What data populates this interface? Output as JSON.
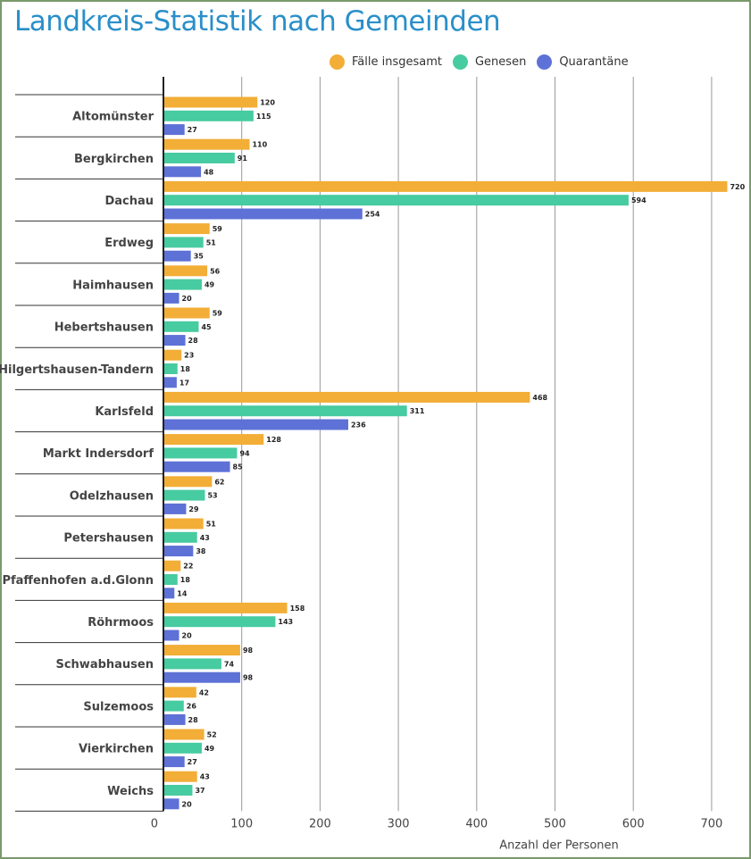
{
  "chart_data": {
    "type": "bar",
    "orientation": "horizontal",
    "title": "Landkreis-Statistik nach Gemeinden",
    "xlabel": "Anzahl der Personen",
    "ylabel": "",
    "xlim": [
      0,
      730
    ],
    "xticks": [
      0,
      100,
      200,
      300,
      400,
      500,
      600,
      700
    ],
    "grid": true,
    "legend_position": "top-right",
    "categories": [
      "Altomünster",
      "Bergkirchen",
      "Dachau",
      "Erdweg",
      "Haimhausen",
      "Hebertshausen",
      "Hilgertshausen-Tandern",
      "Karlsfeld",
      "Markt Indersdorf",
      "Odelzhausen",
      "Petershausen",
      "Pfaffenhofen a.d.Glonn",
      "Röhrmoos",
      "Schwabhausen",
      "Sulzemoos",
      "Vierkirchen",
      "Weichs"
    ],
    "series": [
      {
        "name": "Fälle insgesamt",
        "color": "#f2ae37",
        "values": [
          120,
          110,
          720,
          59,
          56,
          59,
          23,
          468,
          128,
          62,
          51,
          22,
          158,
          98,
          42,
          52,
          43
        ]
      },
      {
        "name": "Genesen",
        "color": "#47cba0",
        "values": [
          115,
          91,
          594,
          51,
          49,
          45,
          18,
          311,
          94,
          53,
          43,
          18,
          143,
          74,
          26,
          49,
          37
        ]
      },
      {
        "name": "Quarantäne",
        "color": "#5d71d6",
        "values": [
          27,
          48,
          254,
          35,
          20,
          28,
          17,
          236,
          85,
          29,
          38,
          14,
          20,
          98,
          28,
          27,
          20
        ]
      }
    ]
  }
}
